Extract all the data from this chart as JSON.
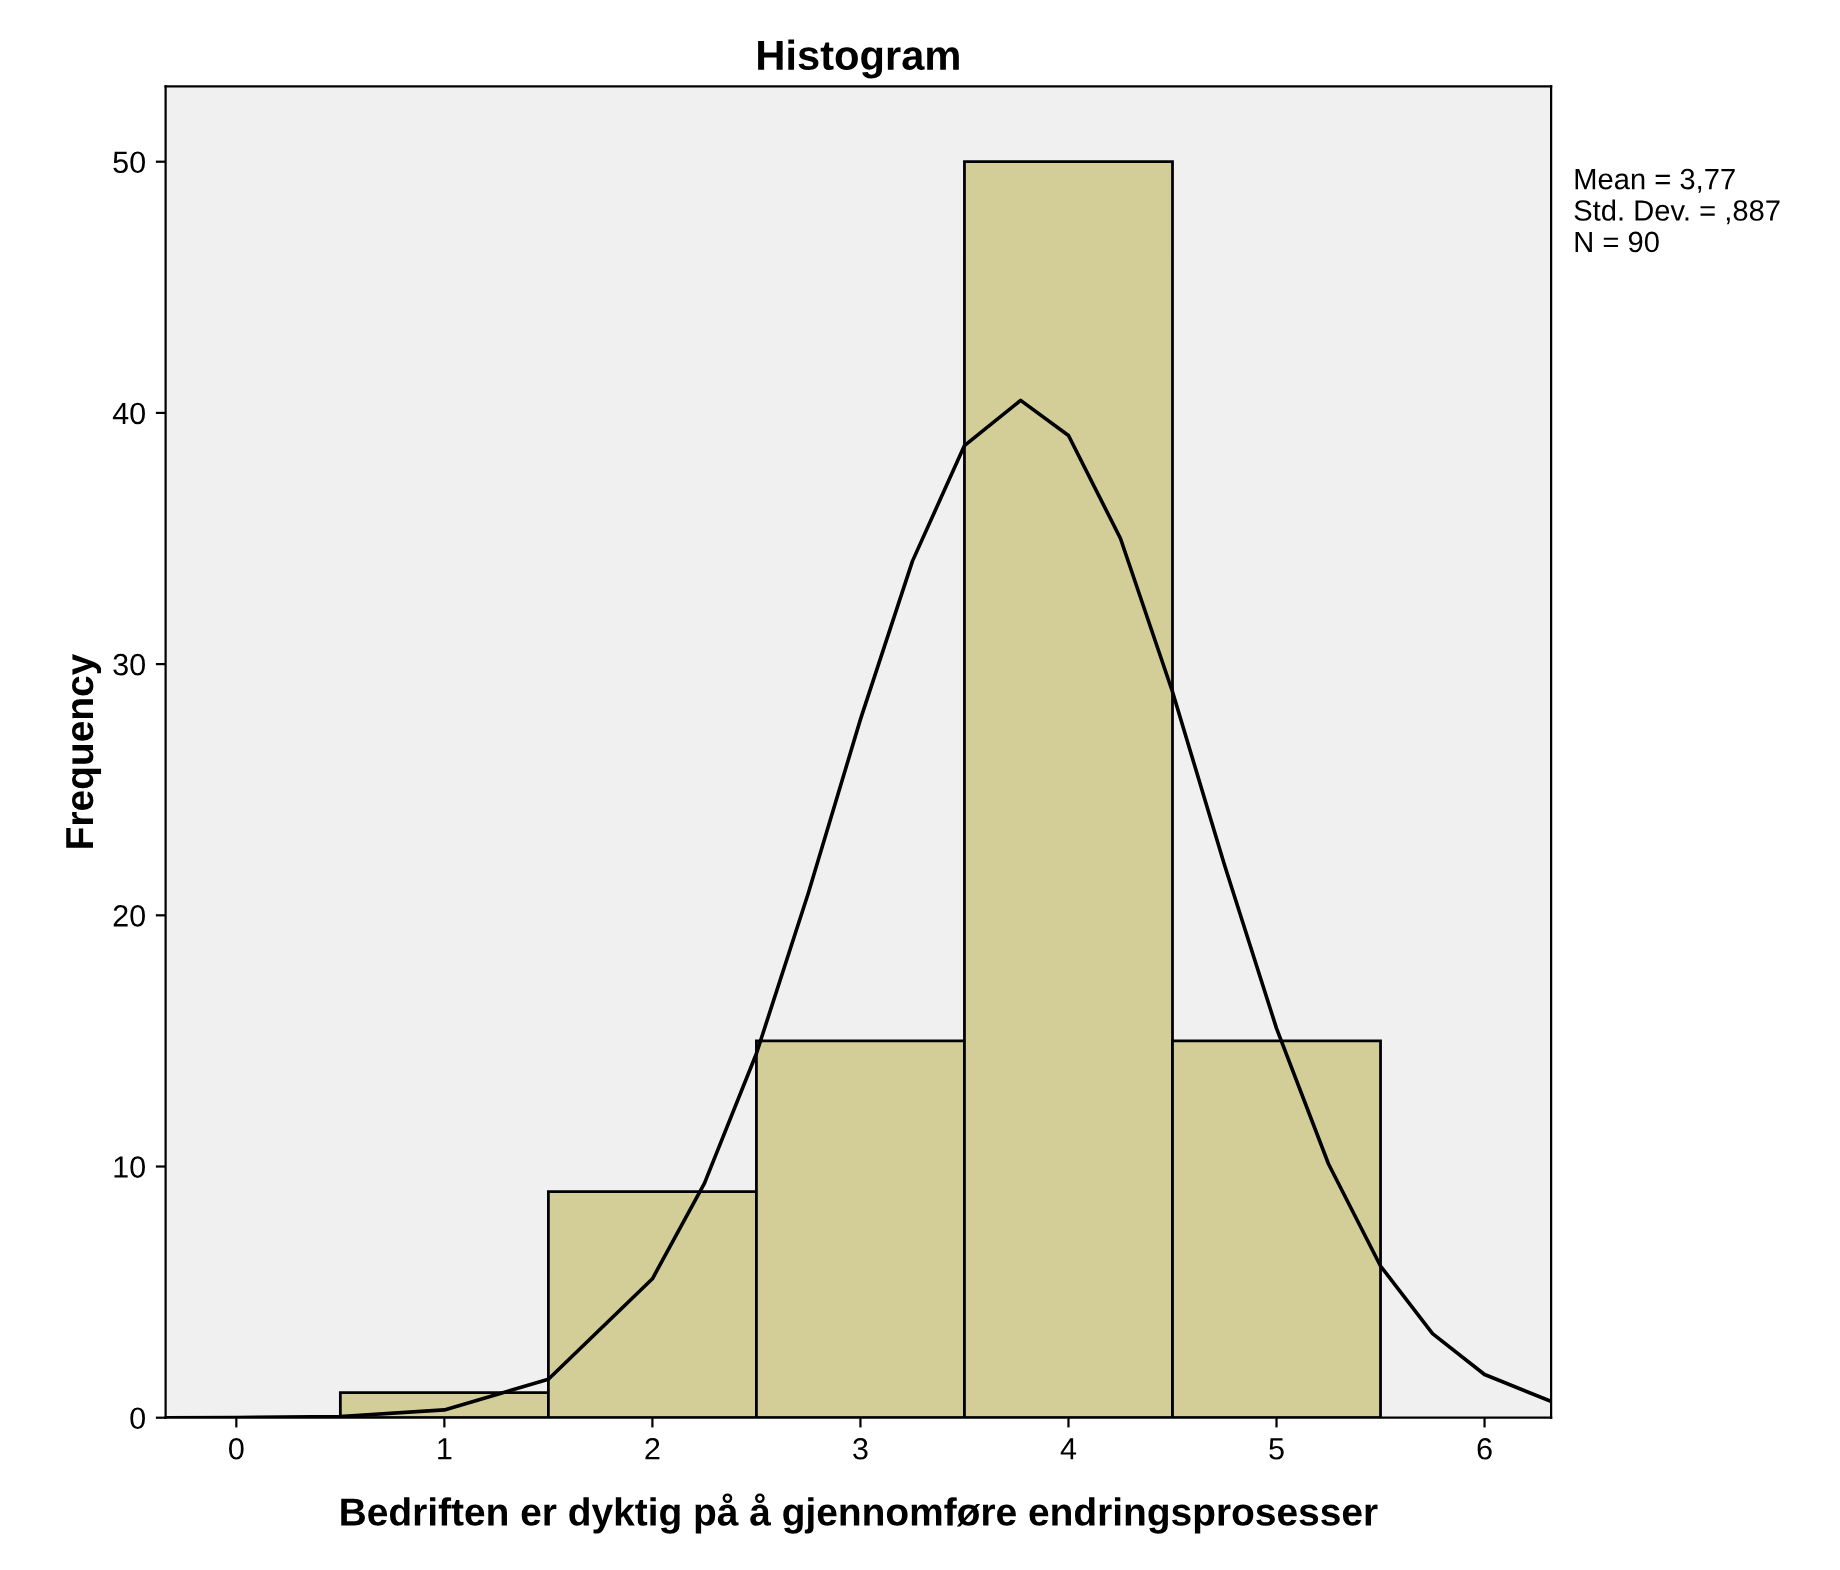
{
  "chart_data": {
    "type": "histogram",
    "title": "Histogram",
    "xlabel": "Bedriften er dyktig på å gjennomføre endringsprosesser",
    "ylabel": "Frequency",
    "bins": [
      0.5,
      1.5,
      2.5,
      3.5,
      4.5,
      5.5
    ],
    "values": [
      1,
      9,
      15,
      50,
      15
    ],
    "color": "#d3ce98",
    "series": [
      {
        "type": "line",
        "color": "#000000",
        "x": [
          -0.34,
          0,
          0.5,
          1,
          1.5,
          2,
          2.25,
          2.5,
          2.75,
          3,
          3.25,
          3.5,
          3.77,
          4,
          4.25,
          4.5,
          4.75,
          5,
          5.25,
          5.5,
          5.75,
          6,
          6.32
        ],
        "values": [
          0,
          0.005,
          0.05,
          0.31,
          1.53,
          5.53,
          9.33,
          14.5,
          20.9,
          27.8,
          34.1,
          38.7,
          40.5,
          39.1,
          35.0,
          28.9,
          22.0,
          15.5,
          10.1,
          6.04,
          3.35,
          1.72,
          0.65
        ]
      }
    ],
    "xlim": [
      -0.34,
      6.32
    ],
    "ylim": [
      0,
      53
    ],
    "xticks": [
      0,
      1,
      2,
      3,
      4,
      5,
      6
    ],
    "yticks": [
      0,
      10,
      20,
      30,
      40,
      50
    ],
    "grid": false,
    "annotations": [
      "Mean = 3,77\nStd. Dev. = ,887\nN = 90"
    ]
  }
}
